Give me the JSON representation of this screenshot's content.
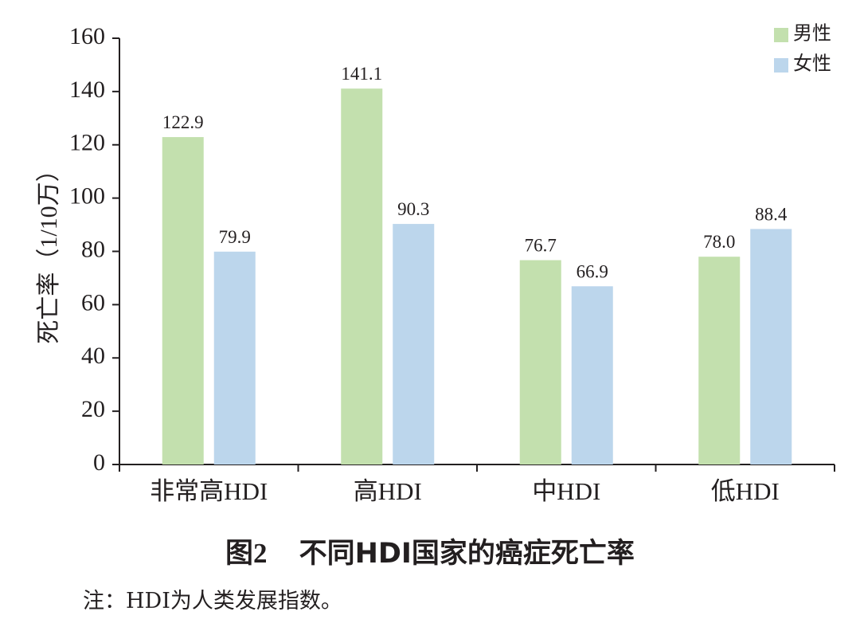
{
  "chart_data": {
    "type": "bar",
    "categories": [
      "非常高HDI",
      "高HDI",
      "中HDI",
      "低HDI"
    ],
    "series": [
      {
        "name": "男性",
        "color": "#c3e0ae",
        "values": [
          122.9,
          141.1,
          76.7,
          78.0
        ],
        "labels": [
          "122.9",
          "141.1",
          "76.7",
          "78.0"
        ]
      },
      {
        "name": "女性",
        "color": "#bcd6ec",
        "values": [
          79.9,
          90.3,
          66.9,
          88.4
        ],
        "labels": [
          "79.9",
          "90.3",
          "66.9",
          "88.4"
        ]
      }
    ],
    "ylabel": "死亡率（1/10万）",
    "ylim": [
      0,
      160
    ],
    "yticks": [
      0,
      20,
      40,
      60,
      80,
      100,
      120,
      140,
      160
    ],
    "grid": false,
    "legend": "top-right"
  },
  "caption": {
    "figure": "图2",
    "title": "不同HDI国家的癌症死亡率"
  },
  "note": "注：HDI为人类发展指数。"
}
